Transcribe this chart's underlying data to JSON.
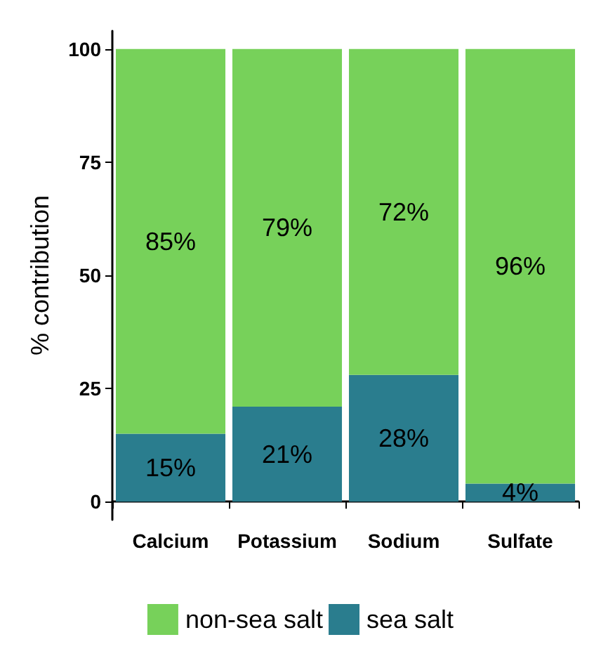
{
  "chart_data": {
    "type": "bar",
    "stacked": true,
    "ylabel": "% contribution",
    "categories": [
      "Calcium",
      "Potassium",
      "Sodium",
      "Sulfate"
    ],
    "series": [
      {
        "name": "sea salt",
        "color": "#2a7d8e",
        "values": [
          15,
          21,
          28,
          4
        ],
        "value_labels": [
          "15%",
          "21%",
          "28%",
          "4%"
        ]
      },
      {
        "name": "non-sea salt",
        "color": "#77d15a",
        "values": [
          85,
          79,
          72,
          96
        ],
        "value_labels": [
          "85%",
          "79%",
          "72%",
          "96%"
        ]
      }
    ],
    "ylim": [
      -4,
      104
    ],
    "yticks": [
      0,
      25,
      50,
      75,
      100
    ],
    "grid": false,
    "legend": "bottom"
  }
}
